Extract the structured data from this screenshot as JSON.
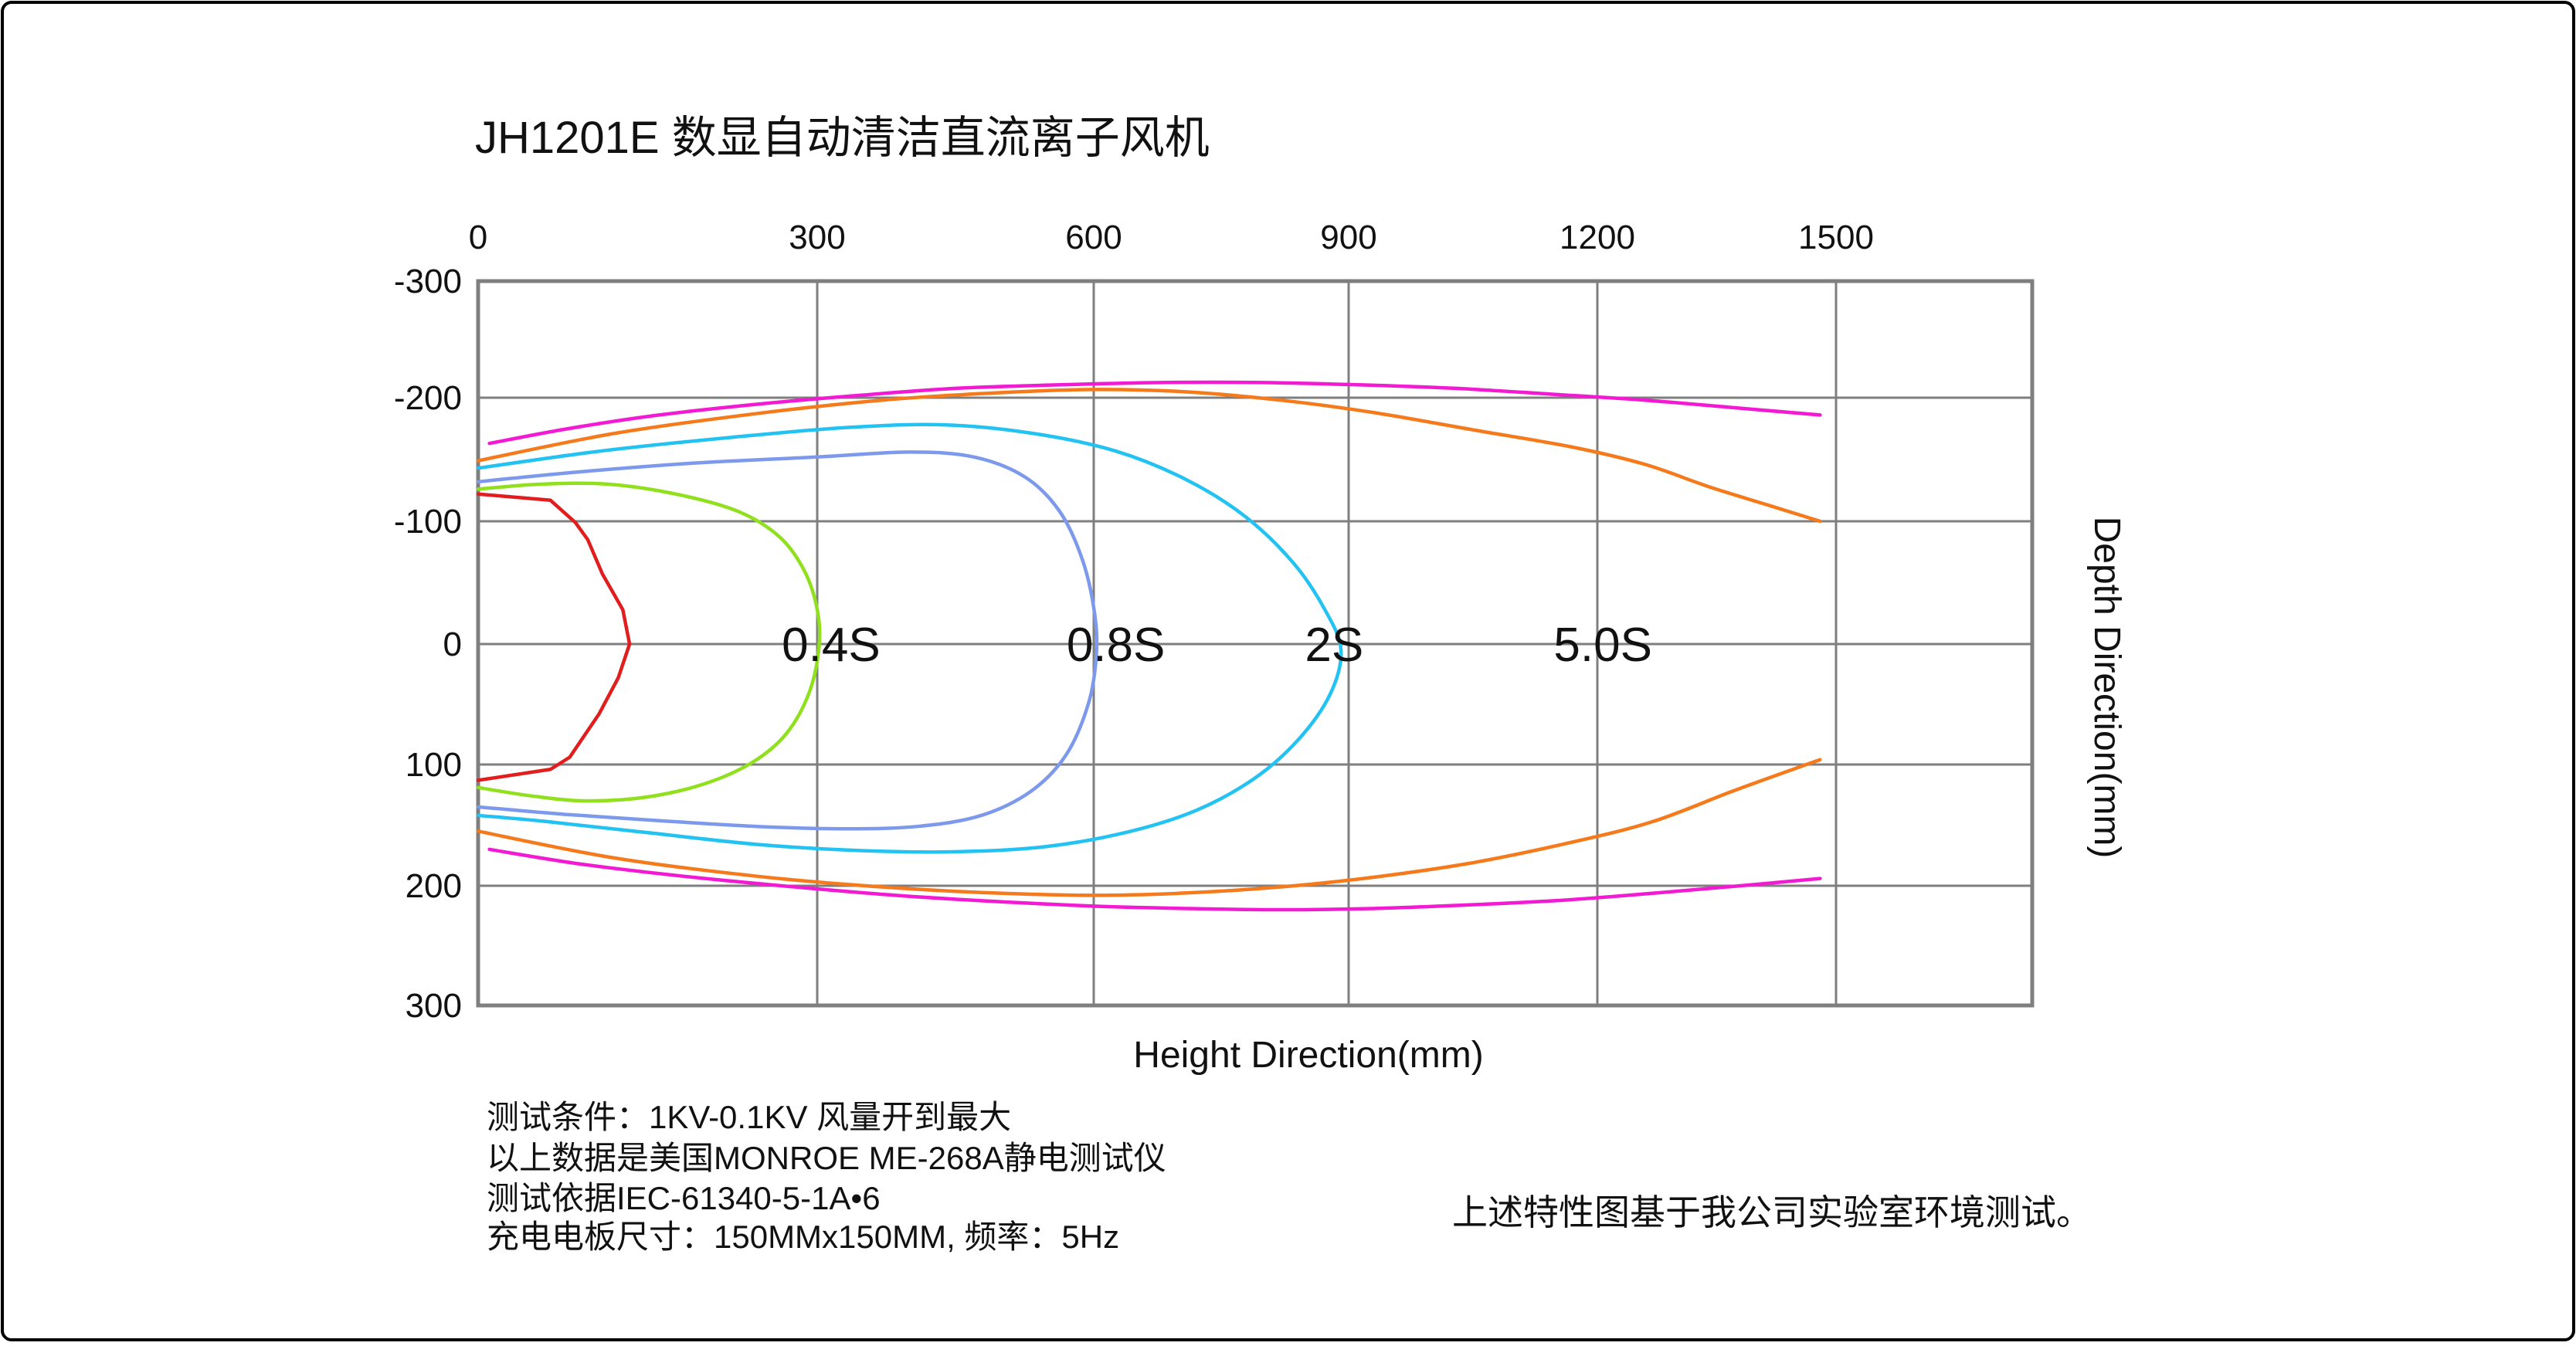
{
  "chart_data": {
    "type": "line",
    "title": "JH1201E 数显自动清洁直流离子风机",
    "xlabel": "Height Direction(mm)",
    "ylabel": "Depth Direction(mm)",
    "x_ticks": [
      0,
      300,
      600,
      900,
      1200,
      1500
    ],
    "y_ticks": [
      -300,
      -200,
      -100,
      0,
      100,
      200,
      300
    ],
    "xlim": [
      0,
      1745
    ],
    "ylim": [
      -300,
      300
    ],
    "grid": true,
    "legend_position": "none",
    "axis_position": {
      "x": "top",
      "y": "left"
    },
    "grid_color": "#7f7f7f",
    "series": [
      {
        "name": "inner-boundary-red",
        "label": "",
        "color": "#e11d1d",
        "smooth": false,
        "points": [
          [
            0,
            -122
          ],
          [
            64,
            -117
          ],
          [
            86,
            -99
          ],
          [
            97,
            -85
          ],
          [
            110,
            -57
          ],
          [
            128,
            -28
          ],
          [
            134,
            0
          ],
          [
            124,
            28
          ],
          [
            107,
            58
          ],
          [
            81,
            94
          ],
          [
            64,
            104
          ],
          [
            0,
            113
          ]
        ]
      },
      {
        "name": "decay-0.4s",
        "label": "0.4S",
        "color": "#90e01e",
        "smooth": true,
        "points": [
          [
            0,
            -126
          ],
          [
            55,
            -130
          ],
          [
            115,
            -130
          ],
          [
            175,
            -122
          ],
          [
            230,
            -108
          ],
          [
            267,
            -87
          ],
          [
            289,
            -59
          ],
          [
            300,
            -28
          ],
          [
            302,
            2
          ],
          [
            293,
            40
          ],
          [
            273,
            74
          ],
          [
            243,
            98
          ],
          [
            200,
            116
          ],
          [
            148,
            127
          ],
          [
            95,
            130
          ],
          [
            48,
            126
          ],
          [
            0,
            119
          ]
        ]
      },
      {
        "name": "decay-0.8s",
        "label": "0.8S",
        "color": "#7d99ec",
        "smooth": true,
        "points": [
          [
            0,
            -132
          ],
          [
            90,
            -140
          ],
          [
            190,
            -147
          ],
          [
            300,
            -152
          ],
          [
            400,
            -156
          ],
          [
            470,
            -152
          ],
          [
            525,
            -136
          ],
          [
            563,
            -108
          ],
          [
            588,
            -68
          ],
          [
            601,
            -25
          ],
          [
            603,
            10
          ],
          [
            594,
            50
          ],
          [
            570,
            92
          ],
          [
            532,
            122
          ],
          [
            478,
            142
          ],
          [
            410,
            151
          ],
          [
            330,
            153
          ],
          [
            245,
            151
          ],
          [
            155,
            146
          ],
          [
            75,
            141
          ],
          [
            0,
            135
          ]
        ]
      },
      {
        "name": "decay-2s",
        "label": "2S",
        "color": "#22c2f2",
        "smooth": true,
        "points": [
          [
            0,
            -143
          ],
          [
            110,
            -157
          ],
          [
            225,
            -168
          ],
          [
            335,
            -176
          ],
          [
            440,
            -178
          ],
          [
            535,
            -171
          ],
          [
            625,
            -157
          ],
          [
            708,
            -134
          ],
          [
            778,
            -104
          ],
          [
            835,
            -66
          ],
          [
            872,
            -28
          ],
          [
            891,
            5
          ],
          [
            878,
            42
          ],
          [
            840,
            80
          ],
          [
            788,
            112
          ],
          [
            720,
            138
          ],
          [
            638,
            156
          ],
          [
            545,
            168
          ],
          [
            448,
            172
          ],
          [
            348,
            171
          ],
          [
            248,
            166
          ],
          [
            148,
            156
          ],
          [
            60,
            147
          ],
          [
            0,
            142
          ]
        ]
      },
      {
        "name": "decay-5.0s-top",
        "label": "5.0S",
        "color": "#f57a1c",
        "smooth": true,
        "points": [
          [
            0,
            -149
          ],
          [
            120,
            -171
          ],
          [
            245,
            -187
          ],
          [
            370,
            -198
          ],
          [
            490,
            -204
          ],
          [
            600,
            -207
          ],
          [
            710,
            -205
          ],
          [
            820,
            -198
          ],
          [
            930,
            -188
          ],
          [
            1050,
            -174
          ],
          [
            1170,
            -160
          ],
          [
            1260,
            -146
          ],
          [
            1340,
            -128
          ],
          [
            1420,
            -112
          ],
          [
            1480,
            -100
          ]
        ]
      },
      {
        "name": "decay-5.0s-bottom",
        "label": "",
        "color": "#f57a1c",
        "smooth": true,
        "points": [
          [
            0,
            155
          ],
          [
            120,
            177
          ],
          [
            245,
            192
          ],
          [
            370,
            201
          ],
          [
            490,
            206
          ],
          [
            600,
            208
          ],
          [
            710,
            206
          ],
          [
            820,
            201
          ],
          [
            930,
            193
          ],
          [
            1050,
            181
          ],
          [
            1170,
            164
          ],
          [
            1270,
            147
          ],
          [
            1370,
            122
          ],
          [
            1450,
            103
          ],
          [
            1480,
            96
          ]
        ]
      },
      {
        "name": "outer-boundary-magenta-top",
        "label": "",
        "color": "#f21ad2",
        "smooth": true,
        "points": [
          [
            10,
            -163
          ],
          [
            80,
            -175
          ],
          [
            160,
            -186
          ],
          [
            250,
            -195
          ],
          [
            345,
            -202
          ],
          [
            450,
            -208
          ],
          [
            560,
            -211
          ],
          [
            680,
            -213
          ],
          [
            800,
            -213
          ],
          [
            915,
            -211
          ],
          [
            1030,
            -208
          ],
          [
            1145,
            -203
          ],
          [
            1260,
            -198
          ],
          [
            1370,
            -192
          ],
          [
            1480,
            -186
          ]
        ]
      },
      {
        "name": "outer-boundary-magenta-bottom",
        "label": "",
        "color": "#f21ad2",
        "smooth": true,
        "points": [
          [
            10,
            170
          ],
          [
            90,
            182
          ],
          [
            180,
            192
          ],
          [
            280,
            201
          ],
          [
            385,
            208
          ],
          [
            490,
            213
          ],
          [
            600,
            217
          ],
          [
            710,
            219
          ],
          [
            820,
            220
          ],
          [
            930,
            219
          ],
          [
            1045,
            216
          ],
          [
            1160,
            212
          ],
          [
            1275,
            206
          ],
          [
            1380,
            200
          ],
          [
            1480,
            194
          ]
        ]
      }
    ],
    "annotations": [
      {
        "text": "0.4S",
        "x": 315,
        "y": 0
      },
      {
        "text": "0.8S",
        "x": 626,
        "y": 0
      },
      {
        "text": "2S",
        "x": 883,
        "y": 0
      },
      {
        "text": "5.0S",
        "x": 1207,
        "y": 0
      }
    ]
  },
  "notes": {
    "line1": "测试条件：1KV-0.1KV  风量开到最大",
    "line2": "以上数据是美国MONROE ME-268A静电测试仪",
    "line3": "测试依据IEC-61340-5-1A•6",
    "line4": "充电电板尺寸：150MMx150MM, 频率：5Hz"
  },
  "footer_right": "上述特性图基于我公司实验室环境测试。"
}
